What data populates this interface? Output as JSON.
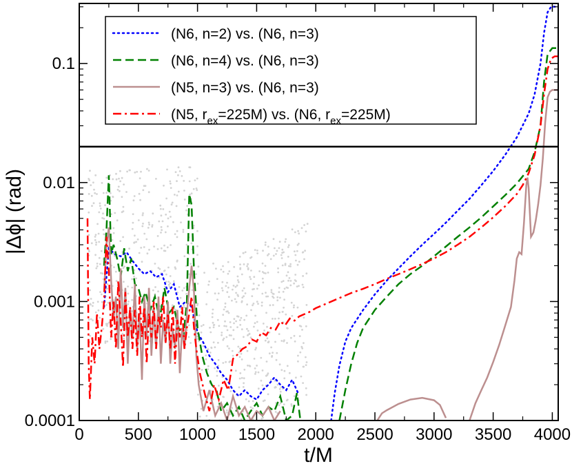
{
  "chart_data": {
    "type": "line",
    "title": "",
    "xlabel": "t/M",
    "ylabel": "|Δϕ| (rad)",
    "xlim": [
      0,
      4050
    ],
    "ylim": [
      0.0001,
      0.32
    ],
    "yscale": "log",
    "xticks": [
      0,
      500,
      1000,
      1500,
      2000,
      2500,
      3000,
      3500,
      4000
    ],
    "xtick_labels": [
      "0",
      "500",
      "1000",
      "1500",
      "2000",
      "2500",
      "3000",
      "3500",
      "4000"
    ],
    "yticks": [
      0.0001,
      0.001,
      0.01,
      0.1
    ],
    "ytick_labels": [
      "0.0001",
      "0.001",
      "0.01",
      "0.1"
    ],
    "grid": false,
    "legend_position": "top-left",
    "reference_line": {
      "y": 0.02,
      "color": "#000000"
    },
    "series": [
      {
        "name": "(N6, n=2) vs. (N6, n=3)",
        "legend_parts": [
          [
            "(N6, n=2) vs. (N6, n=3)",
            ""
          ]
        ],
        "color": "#0000ff",
        "style": "dotted",
        "x": [
          210,
          250,
          300,
          350,
          400,
          450,
          500,
          550,
          600,
          650,
          700,
          750,
          800,
          850,
          900,
          950,
          1000,
          1050,
          1100,
          1150,
          1200,
          1250,
          1300,
          1350,
          1400,
          1450,
          1500,
          1550,
          1600,
          1650,
          1700,
          1750,
          1800,
          1850
        ],
        "y": [
          0.0009,
          0.0028,
          0.0025,
          0.0024,
          0.0026,
          0.0022,
          0.0019,
          0.0017,
          0.0018,
          0.0016,
          0.0017,
          0.0012,
          0.0014,
          0.0009,
          0.001,
          0.0009,
          0.00055,
          0.00045,
          0.00035,
          0.0003,
          0.00025,
          0.00022,
          0.00018,
          0.00016,
          0.00018,
          0.00016,
          0.00015,
          0.00018,
          0.0002,
          0.00023,
          0.0002,
          0.00018,
          0.00022,
          0.00017
        ]
      },
      {
        "name": "(N6, n=2) vs. (N6, n=3)",
        "legend_parts": [],
        "color": "#0000ff",
        "style": "dotted",
        "x": [
          2130,
          2160,
          2200,
          2250,
          2300,
          2400,
          2500,
          2600,
          2700,
          2800,
          2900,
          3000,
          3100,
          3200,
          3300,
          3400,
          3500,
          3600,
          3700,
          3800,
          3850,
          3900,
          3930,
          3960,
          3990,
          4050
        ],
        "y": [
          0.0001,
          0.00017,
          0.00029,
          0.00046,
          0.0006,
          0.00085,
          0.00115,
          0.0015,
          0.0019,
          0.0024,
          0.003,
          0.0037,
          0.0046,
          0.0058,
          0.0073,
          0.0095,
          0.0125,
          0.017,
          0.024,
          0.038,
          0.055,
          0.1,
          0.18,
          0.27,
          0.3,
          0.3
        ]
      },
      {
        "name": "(N6, n=4) vs. (N6, n=3)",
        "legend_parts": [
          [
            "(N6, n=4) vs. (N6, n=3)",
            ""
          ]
        ],
        "color": "#008000",
        "style": "dashed",
        "x": [
          210,
          230,
          250,
          270,
          290,
          320,
          350,
          380,
          410,
          440,
          470,
          500,
          530,
          560,
          600,
          640,
          680,
          720,
          760,
          800,
          840,
          880,
          910,
          930,
          950,
          970,
          1000,
          1040,
          1080,
          1120,
          1160,
          1200,
          1250,
          1300,
          1350,
          1400,
          1450,
          1500,
          1550,
          1600,
          1650,
          1700,
          1750,
          1800,
          1840,
          1870
        ],
        "y": [
          0.002,
          0.004,
          0.0115,
          0.0025,
          0.003,
          0.0023,
          0.0016,
          0.0028,
          0.0018,
          0.0023,
          0.0014,
          0.0013,
          0.001,
          0.0012,
          0.00085,
          0.0011,
          0.0007,
          0.0013,
          0.0008,
          0.0009,
          0.0006,
          0.0005,
          0.001,
          0.008,
          0.0065,
          0.0018,
          0.0006,
          0.00035,
          0.00025,
          0.0002,
          0.00018,
          0.00012,
          0.00014,
          0.00011,
          0.00013,
          0.0001,
          0.00012,
          0.00014,
          0.00011,
          0.00013,
          0.00012,
          0.00016,
          0.0001,
          0.00011,
          0.00017,
          0.0001
        ]
      },
      {
        "name": "(N6, n=4) vs. (N6, n=3)",
        "legend_parts": [],
        "color": "#008000",
        "style": "dashed",
        "x": [
          2200,
          2250,
          2300,
          2350,
          2400,
          2500,
          2600,
          2700,
          2800,
          2900,
          3000,
          3100,
          3200,
          3300,
          3400,
          3500,
          3600,
          3700,
          3800,
          3850,
          3900,
          3930,
          3960,
          4000,
          4050
        ],
        "y": [
          0.0001,
          0.00018,
          0.0003,
          0.00045,
          0.0006,
          0.00085,
          0.0011,
          0.0014,
          0.0017,
          0.002,
          0.0024,
          0.0029,
          0.0035,
          0.0042,
          0.0051,
          0.0063,
          0.0078,
          0.0098,
          0.013,
          0.018,
          0.03,
          0.07,
          0.12,
          0.135,
          0.135
        ]
      },
      {
        "name": "(N5, n=3) vs. (N6, n=3)",
        "legend_parts": [
          [
            "(N5, n=3) vs. (N6, n=3)",
            ""
          ]
        ],
        "color": "#bc8f8f",
        "style": "solid",
        "x": [
          210,
          230,
          250,
          270,
          290,
          310,
          330,
          350,
          370,
          390,
          410,
          430,
          450,
          470,
          490,
          510,
          530,
          550,
          570,
          590,
          610,
          630,
          650,
          670,
          690,
          710,
          730,
          750,
          770,
          790,
          810,
          830,
          850,
          870,
          890,
          910,
          930,
          950,
          970,
          990,
          1010,
          1050,
          1100,
          1150,
          1200,
          1250,
          1300,
          1350,
          1400,
          1450,
          1500,
          1550,
          1600,
          1650,
          1700
        ],
        "y": [
          0.0012,
          0.003,
          0.0042,
          0.0015,
          0.0007,
          0.0011,
          0.0004,
          0.0019,
          0.0006,
          0.0013,
          0.0003,
          0.0009,
          0.0005,
          0.0014,
          0.0004,
          0.0008,
          0.00022,
          0.0011,
          0.0005,
          0.0013,
          0.00035,
          0.0009,
          0.0004,
          0.0011,
          0.0003,
          0.0007,
          0.00045,
          0.001,
          0.0003,
          0.0006,
          0.0004,
          0.00085,
          0.00025,
          0.0006,
          0.0004,
          0.0008,
          0.0013,
          0.002,
          0.0012,
          0.00035,
          0.0002,
          0.00012,
          0.00018,
          0.00011,
          0.00014,
          0.0001,
          0.00016,
          0.00011,
          0.00013,
          0.0001,
          0.00012,
          0.00011,
          0.00013,
          0.0001,
          0.00012
        ]
      },
      {
        "name": "(N5, n=3) vs. (N6, n=3)",
        "legend_parts": [],
        "color": "#bc8f8f",
        "style": "solid",
        "x": [
          2520,
          2560,
          2600,
          2700,
          2800,
          2900,
          3000,
          3050,
          3100
        ],
        "y": [
          0.0001,
          0.000115,
          0.000122,
          0.000138,
          0.00015,
          0.000155,
          0.000148,
          0.000135,
          0.000105
        ]
      },
      {
        "name": "(N5, n=3) vs. (N6, n=3)",
        "legend_parts": [],
        "color": "#bc8f8f",
        "style": "solid",
        "x": [
          3300,
          3350,
          3400,
          3450,
          3500,
          3550,
          3600,
          3650,
          3680,
          3700,
          3720,
          3740,
          3760,
          3780,
          3790,
          3800,
          3820,
          3840,
          3860,
          3880,
          3900,
          3920,
          3940,
          3960,
          3980,
          4000,
          4050
        ],
        "y": [
          0.0001,
          0.00014,
          0.00018,
          0.00023,
          0.00031,
          0.00043,
          0.00062,
          0.0009,
          0.0015,
          0.0023,
          0.0026,
          0.0025,
          0.0045,
          0.0095,
          0.011,
          0.009,
          0.0035,
          0.0038,
          0.0048,
          0.0065,
          0.0095,
          0.016,
          0.032,
          0.052,
          0.058,
          0.06,
          0.06
        ]
      },
      {
        "name": "(N5, r_ex=225M) vs. (N6, r_ex=225M)",
        "legend_parts": [
          [
            "(N5, r",
            ""
          ],
          [
            "ex",
            "sub"
          ],
          [
            "=225M) vs. (N6, r",
            ""
          ],
          [
            "ex",
            "sub"
          ],
          [
            "=225M)",
            ""
          ]
        ],
        "color": "#ff0000",
        "style": "dashdot",
        "x": [
          70,
          80,
          90,
          110,
          130,
          150,
          170,
          190,
          210,
          230,
          250,
          270,
          290,
          310,
          330,
          350,
          370,
          390,
          410,
          430,
          450,
          470,
          490,
          510,
          530,
          550,
          570,
          590,
          610,
          630,
          650,
          670,
          690,
          710,
          730,
          750,
          770,
          790,
          810,
          830,
          850,
          870,
          890,
          910,
          930,
          950,
          970,
          990,
          1020,
          1060,
          1100,
          1140,
          1180,
          1220,
          1260,
          1300,
          1340,
          1380,
          1420,
          1460,
          1500,
          1540,
          1580,
          1620,
          1660,
          1700,
          1740,
          1780,
          1820,
          1860,
          1900,
          1950,
          2000,
          2100,
          2200,
          2300,
          2400,
          2500,
          2600,
          2700,
          2800,
          2900,
          3000,
          3100,
          3200,
          3300,
          3400,
          3500,
          3600,
          3700,
          3750,
          3800,
          3850,
          3900,
          3930,
          3960,
          3990,
          4020,
          4050
        ],
        "y": [
          0.005,
          0.0003,
          0.00015,
          0.0005,
          0.0003,
          0.0008,
          0.0004,
          0.0006,
          0.001,
          0.0035,
          0.0018,
          0.0005,
          0.001,
          0.0004,
          0.0015,
          0.0007,
          0.00028,
          0.0012,
          0.0005,
          0.0009,
          0.0004,
          0.00085,
          0.00035,
          0.0011,
          0.0005,
          0.0009,
          0.0003,
          0.0008,
          0.0005,
          0.001,
          0.0004,
          0.00075,
          0.0006,
          0.0011,
          0.00045,
          0.0008,
          0.0004,
          0.0009,
          0.0003,
          0.0007,
          0.0005,
          0.0009,
          0.0004,
          0.0006,
          0.0008,
          0.0011,
          0.0006,
          0.0004,
          0.00025,
          0.00017,
          0.00012,
          0.0002,
          0.00015,
          0.00022,
          0.00018,
          0.00033,
          0.00036,
          0.0004,
          0.00042,
          0.00048,
          0.00046,
          0.00055,
          0.00052,
          0.0006,
          0.00058,
          0.00068,
          0.00063,
          0.00072,
          0.00069,
          0.00075,
          0.00078,
          0.00082,
          0.00088,
          0.00097,
          0.00107,
          0.00118,
          0.00128,
          0.0014,
          0.00155,
          0.0017,
          0.00187,
          0.00207,
          0.0023,
          0.0026,
          0.003,
          0.0035,
          0.0042,
          0.0051,
          0.0063,
          0.008,
          0.0095,
          0.012,
          0.017,
          0.03,
          0.055,
          0.09,
          0.11,
          0.115,
          0.115
        ]
      }
    ]
  }
}
